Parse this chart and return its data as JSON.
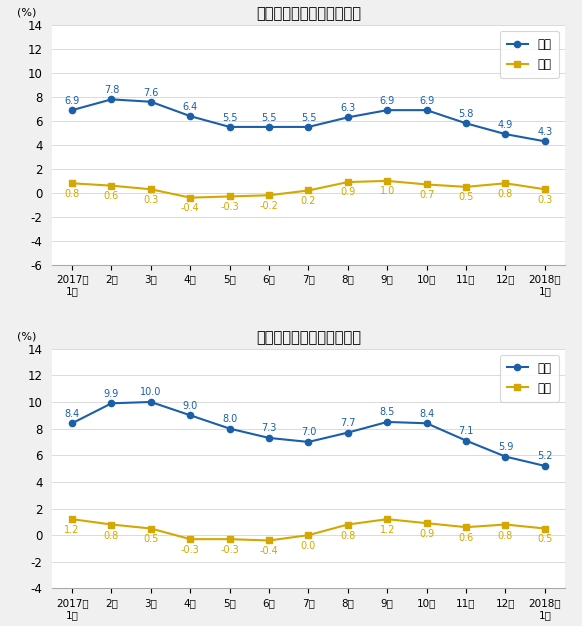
{
  "top_chart": {
    "title": "工业生产者出厂价格涨跌幅",
    "tongbi": [
      6.9,
      7.8,
      7.6,
      6.4,
      5.5,
      5.5,
      5.5,
      6.3,
      6.9,
      6.9,
      5.8,
      4.9,
      4.3
    ],
    "huanbi": [
      0.8,
      0.6,
      0.3,
      -0.4,
      -0.3,
      -0.2,
      0.2,
      0.9,
      1.0,
      0.7,
      0.5,
      0.8,
      0.3
    ],
    "ylim": [
      -6,
      14
    ],
    "yticks": [
      -6,
      -4,
      -2,
      0,
      2,
      4,
      6,
      8,
      10,
      12,
      14
    ]
  },
  "bottom_chart": {
    "title": "工业生产者购进价格涨跌幅",
    "tongbi": [
      8.4,
      9.9,
      10.0,
      9.0,
      8.0,
      7.3,
      7.0,
      7.7,
      8.5,
      8.4,
      7.1,
      5.9,
      5.2
    ],
    "huanbi": [
      1.2,
      0.8,
      0.5,
      -0.3,
      -0.3,
      -0.4,
      0.0,
      0.8,
      1.2,
      0.9,
      0.6,
      0.8,
      0.5
    ],
    "ylim": [
      -4,
      14
    ],
    "yticks": [
      -4,
      -2,
      0,
      2,
      4,
      6,
      8,
      10,
      12,
      14
    ]
  },
  "xlabels_top": [
    "2017年\n1月",
    "2月",
    "3月",
    "4月",
    "5月",
    "6月",
    "7月",
    "8月",
    "9月",
    "10月",
    "11月",
    "12月",
    "2018年\n1月"
  ],
  "xlabels_bottom": [
    "2017年\n1月",
    "2月",
    "3月",
    "4月",
    "5月",
    "6月",
    "7月",
    "8月",
    "9月",
    "10月",
    "11月",
    "12月",
    "2018年\n1月"
  ],
  "tongbi_color": "#1A5FA8",
  "huanbi_color": "#D4A800",
  "ylabel": "(%)",
  "legend_tongbi": "同比",
  "legend_huanbi": "环比",
  "bg_color": "#F0F0F0",
  "plot_bg_color": "#FFFFFF",
  "top_label_offsets_tongbi": [
    0.35,
    0.35,
    0.35,
    0.35,
    0.35,
    0.35,
    0.35,
    0.35,
    0.35,
    0.35,
    0.35,
    0.35,
    0.35
  ],
  "top_label_offsets_huanbi": [
    -0.5,
    -0.5,
    -0.5,
    -0.5,
    -0.5,
    -0.5,
    -0.5,
    -0.5,
    -0.5,
    -0.5,
    -0.5,
    -0.5,
    -0.5
  ],
  "bottom_label_offsets_tongbi": [
    0.35,
    0.35,
    0.35,
    0.35,
    0.35,
    0.35,
    0.35,
    0.35,
    0.35,
    0.35,
    0.35,
    0.35,
    0.35
  ],
  "bottom_label_offsets_huanbi": [
    -0.5,
    -0.5,
    -0.5,
    -0.5,
    -0.5,
    -0.5,
    -0.5,
    -0.5,
    -0.5,
    -0.5,
    -0.5,
    -0.5,
    -0.5
  ]
}
